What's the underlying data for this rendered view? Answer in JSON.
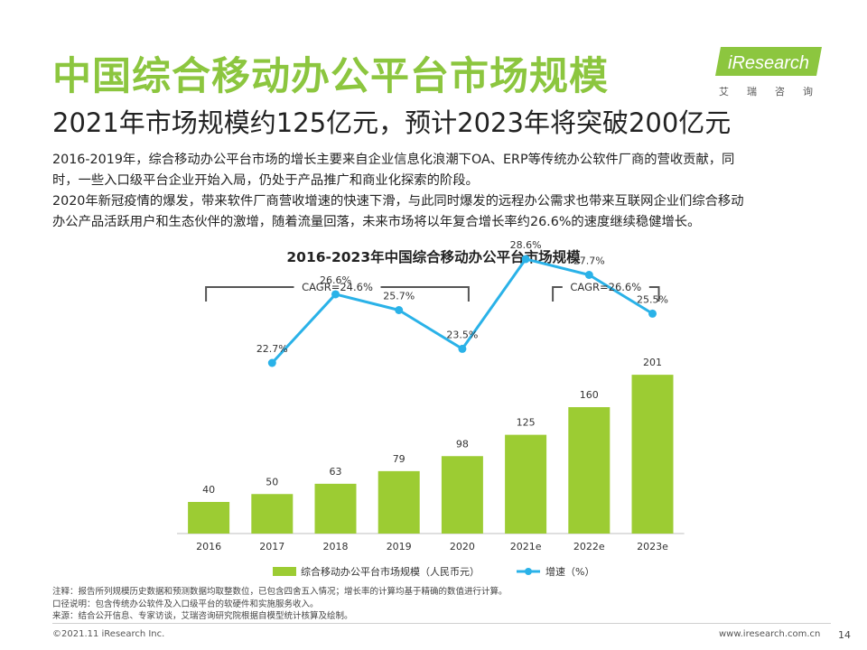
{
  "header": {
    "title": "中国综合移动办公平台市场规模",
    "subtitle": "2021年市场规模约125亿元，预计2023年将突破200亿元"
  },
  "logo": {
    "name": "iResearch",
    "cn": "艾瑞咨询"
  },
  "description": {
    "line1": "2016-2019年，综合移动办公平台市场的增长主要来自企业信息化浪潮下OA、ERP等传统办公软件厂商的营收贡献，同",
    "line2": "时，一些入口级平台企业开始入局，仍处于产品推广和商业化探索的阶段。",
    "line3": "2020年新冠疫情的爆发，带来软件厂商营收增速的快速下滑，与此同时爆发的远程办公需求也带来互联网企业们综合移动",
    "line4": "办公产品活跃用户和生态伙伴的激增，随着流量回落，未来市场将以年复合增长率约26.6%的速度继续稳健增长。"
  },
  "chart_data": {
    "type": "bar",
    "title": "2016-2023年中国综合移动办公平台市场规模",
    "categories": [
      "2016",
      "2017",
      "2018",
      "2019",
      "2020",
      "2021e",
      "2022e",
      "2023e"
    ],
    "series": [
      {
        "name": "综合移动办公平台市场规模（人民币元）",
        "type": "bar",
        "color": "#9ccc33",
        "values": [
          40,
          50,
          63,
          79,
          98,
          125,
          160,
          201
        ]
      },
      {
        "name": "增速（%）",
        "type": "line",
        "color": "#2ab2e8",
        "values": [
          null,
          22.7,
          26.6,
          25.7,
          23.5,
          28.6,
          27.7,
          25.5
        ],
        "labels": [
          "",
          "22.7%",
          "26.6%",
          "25.7%",
          "23.5%",
          "28.6%",
          "27.7%",
          "25.5%"
        ]
      }
    ],
    "annotations": [
      {
        "text": "CAGR=24.6%",
        "from": "2016",
        "to": "2020"
      },
      {
        "text": "CAGR=26.6%",
        "from": "2021e",
        "to": "2023e"
      }
    ],
    "legend_position": "bottom",
    "grid": false
  },
  "notes": {
    "line1": "注释：报告所列规模历史数据和预测数据均取整数位，已包含四舍五入情况；增长率的计算均基于精确的数值进行计算。",
    "line2": "口径说明：包含传统办公软件及入口级平台的软硬件和实施服务收入。",
    "line3": "来源：结合公开信息、专家访谈，艾瑞咨询研究院根据自模型统计核算及绘制。"
  },
  "footer": {
    "copyright": "©2021.11 iResearch Inc.",
    "website": "www.iresearch.com.cn",
    "page": "14"
  }
}
